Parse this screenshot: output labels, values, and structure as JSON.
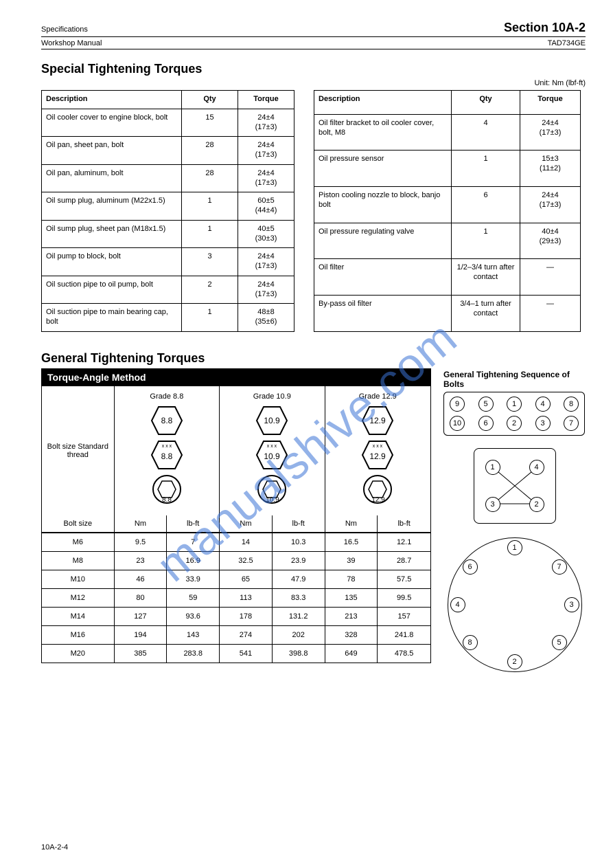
{
  "header": {
    "left": "Specifications",
    "right": "Section 10A-2",
    "sub_left": "Workshop Manual",
    "sub_right": "TAD734GE"
  },
  "section_title": "Special Tightening Torques",
  "unit_note": "Unit: Nm (lbf-ft)",
  "left_table": {
    "columns": [
      "Description",
      "Qty",
      "Torque"
    ],
    "rows": [
      [
        "Oil cooler cover to engine block, bolt",
        "15",
        "24±4\n(17±3)"
      ],
      [
        "Oil pan, sheet pan, bolt",
        "28",
        "24±4\n(17±3)"
      ],
      [
        "Oil pan, aluminum, bolt",
        "28",
        "24±4\n(17±3)"
      ],
      [
        "Oil sump plug, aluminum (M22x1.5)",
        "1",
        "60±5\n(44±4)"
      ],
      [
        "Oil sump plug, sheet pan (M18x1.5)",
        "1",
        "40±5\n(30±3)"
      ],
      [
        "Oil pump to block, bolt",
        "3",
        "24±4\n(17±3)"
      ],
      [
        "Oil suction pipe to oil pump, bolt",
        "2",
        "24±4\n(17±3)"
      ],
      [
        "Oil suction pipe to main bearing cap, bolt",
        "1",
        "48±8\n(35±6)"
      ]
    ]
  },
  "right_table": {
    "columns": [
      "Description",
      "Qty",
      "Torque"
    ],
    "rows": [
      [
        "Oil filter bracket to oil cooler cover, bolt, M8",
        "4",
        "24±4\n(17±3)"
      ],
      [
        "Oil pressure sensor",
        "1",
        "15±3\n(11±2)"
      ],
      [
        "Piston cooling nozzle to block, banjo bolt",
        "6",
        "24±4\n(17±3)"
      ],
      [
        "Oil pressure regulating valve",
        "1",
        "40±4\n(29±3)"
      ],
      [
        "Oil filter",
        "1/2–3/4 turn after\ncontact",
        "—"
      ],
      [
        "By-pass oil filter",
        "3/4–1 turn after\ncontact",
        "—"
      ]
    ]
  },
  "torque": {
    "title": "General Tightening Torques",
    "title_black": "Torque-Angle Method",
    "grade_header": "Bolt size Standard thread",
    "grades": [
      {
        "label": "Grade 8.8",
        "mark": "8.8"
      },
      {
        "label": "Grade 10.9",
        "mark": "10.9"
      },
      {
        "label": "Grade 12.9",
        "mark": "12.9"
      }
    ],
    "col_head": {
      "sz": "Bolt size",
      "nm": "Nm",
      "ft": "lb-ft"
    },
    "rows": [
      {
        "sz": "M6",
        "v": [
          "9.5",
          "7",
          "14",
          "10.3",
          "16.5",
          "12.1"
        ]
      },
      {
        "sz": "M8",
        "v": [
          "23",
          "16.9",
          "32.5",
          "23.9",
          "39",
          "28.7"
        ]
      },
      {
        "sz": "M10",
        "v": [
          "46",
          "33.9",
          "65",
          "47.9",
          "78",
          "57.5"
        ]
      },
      {
        "sz": "M12",
        "v": [
          "80",
          "59",
          "113",
          "83.3",
          "135",
          "99.5"
        ]
      },
      {
        "sz": "M14",
        "v": [
          "127",
          "93.6",
          "178",
          "131.2",
          "213",
          "157"
        ]
      },
      {
        "sz": "M16",
        "v": [
          "194",
          "143",
          "274",
          "202",
          "328",
          "241.8"
        ]
      },
      {
        "sz": "M20",
        "v": [
          "385",
          "283.8",
          "541",
          "398.8",
          "649",
          "478.5"
        ]
      }
    ]
  },
  "sequence": {
    "title": "General Tightening Sequence of Bolts",
    "rect10": [
      "9",
      "5",
      "1",
      "4",
      "8",
      "10",
      "6",
      "2",
      "3",
      "7"
    ],
    "square4": [
      "1",
      "4",
      "3",
      "2"
    ],
    "circle8": [
      "1",
      "7",
      "3",
      "5",
      "2",
      "8",
      "4",
      "6"
    ]
  },
  "watermark": "manualshive.com",
  "footer": "10A-2-4"
}
